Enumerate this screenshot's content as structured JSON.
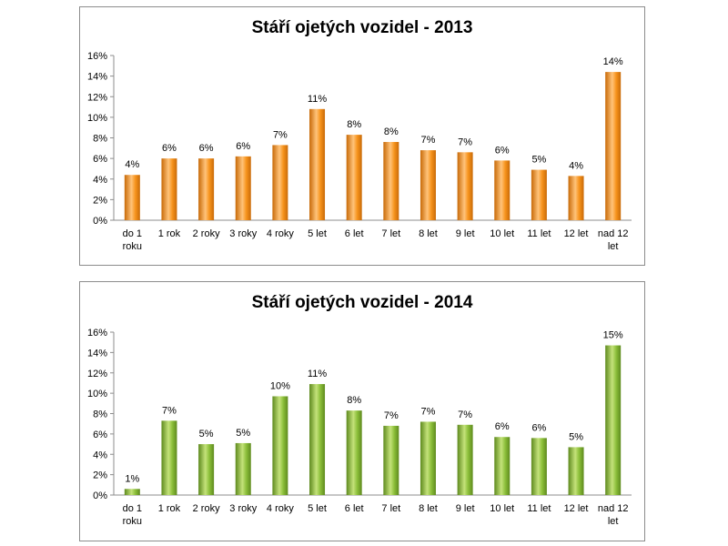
{
  "chart_data": [
    {
      "type": "bar",
      "title": "Stáří ojetých vozidel - 2013",
      "categories": [
        "do 1 roku",
        "1 rok",
        "2 roky",
        "3 roky",
        "4 roky",
        "5 let",
        "6 let",
        "7 let",
        "8 let",
        "9 let",
        "10 let",
        "11 let",
        "12 let",
        "nad 12 let"
      ],
      "values": [
        4.4,
        6.0,
        6.0,
        6.2,
        7.3,
        10.8,
        8.3,
        7.6,
        6.8,
        6.6,
        5.8,
        4.9,
        4.3,
        14.4
      ],
      "data_labels": [
        "4%",
        "6%",
        "6%",
        "6%",
        "7%",
        "11%",
        "8%",
        "8%",
        "7%",
        "7%",
        "6%",
        "5%",
        "4%",
        "14%"
      ],
      "ylim": [
        0,
        16
      ],
      "yticks": [
        "0%",
        "2%",
        "4%",
        "6%",
        "8%",
        "10%",
        "12%",
        "14%",
        "16%"
      ],
      "grid": false,
      "colors": {
        "bar_light": "#ffc37a",
        "bar_mid": "#f7941d",
        "bar_dark": "#c86a08"
      }
    },
    {
      "type": "bar",
      "title": "Stáří ojetých vozidel - 2014",
      "categories": [
        "do 1 roku",
        "1 rok",
        "2 roky",
        "3 roky",
        "4 roky",
        "5 let",
        "6 let",
        "7 let",
        "8 let",
        "9 let",
        "10 let",
        "11 let",
        "12 let",
        "nad 12 let"
      ],
      "values": [
        0.6,
        7.3,
        5.0,
        5.1,
        9.7,
        10.9,
        8.3,
        6.8,
        7.2,
        6.9,
        5.7,
        5.6,
        4.7,
        14.7
      ],
      "data_labels": [
        "1%",
        "7%",
        "5%",
        "5%",
        "10%",
        "11%",
        "8%",
        "7%",
        "7%",
        "7%",
        "6%",
        "6%",
        "5%",
        "15%"
      ],
      "ylim": [
        0,
        16
      ],
      "yticks": [
        "0%",
        "2%",
        "4%",
        "6%",
        "8%",
        "10%",
        "12%",
        "14%",
        "16%"
      ],
      "grid": false,
      "colors": {
        "bar_light": "#c4e27a",
        "bar_mid": "#8cbf3a",
        "bar_dark": "#5e8a1e"
      }
    }
  ]
}
